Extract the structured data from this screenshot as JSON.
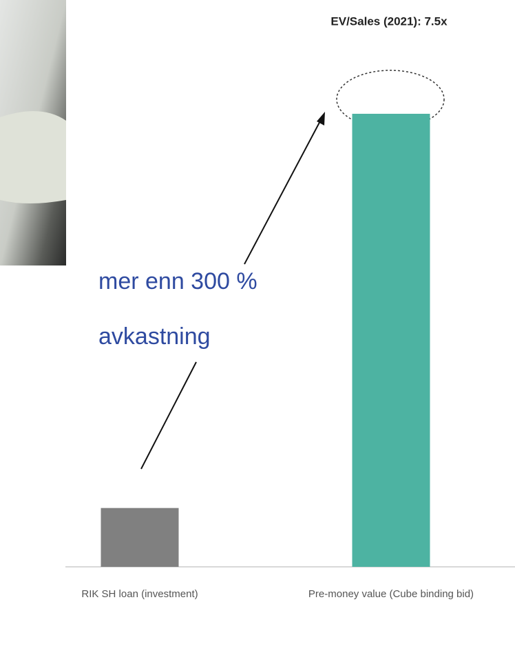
{
  "chart_data": {
    "type": "bar",
    "title": "EV/Sales (2021): 7.5x",
    "annotation": [
      "mer enn 300 %",
      "avkastning"
    ],
    "categories": [
      "RIK SH loan (investment)",
      "Pre-money value (Cube binding bid)"
    ],
    "values": [
      1,
      7.7
    ],
    "colors": [
      "#808080",
      "#4db3a2"
    ]
  }
}
